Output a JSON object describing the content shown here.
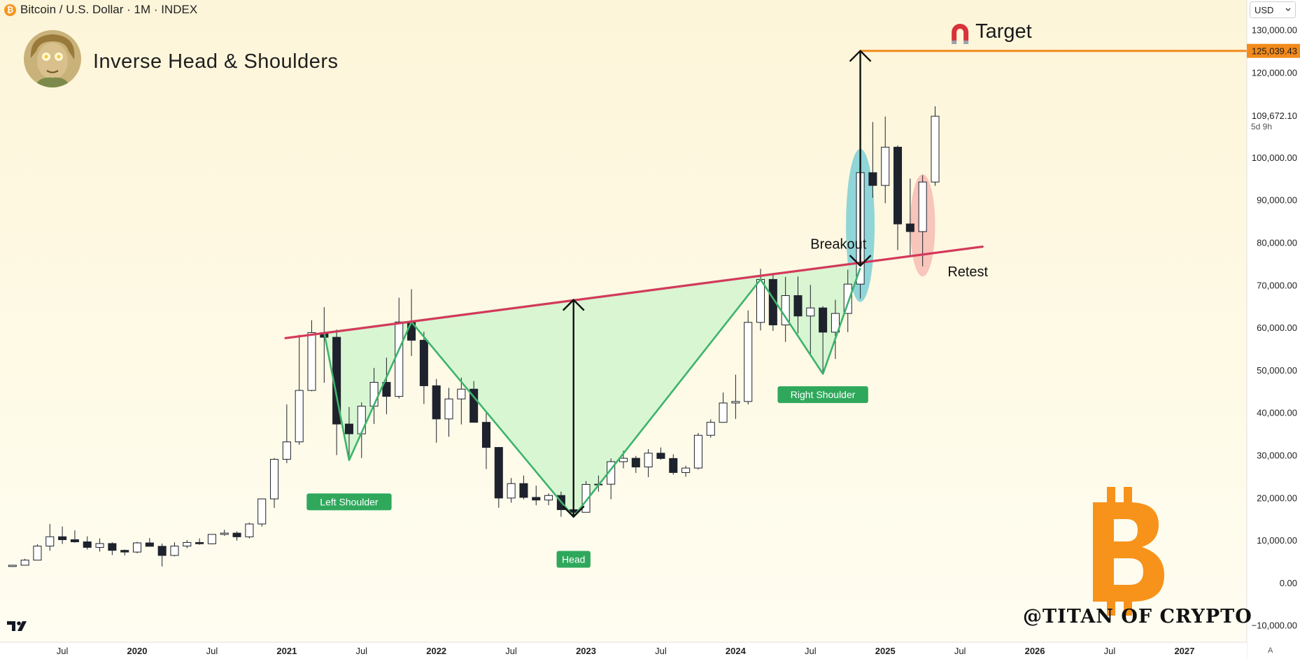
{
  "header": {
    "symbol_icon": "bitcoin-icon",
    "symbol_glyph": "₿",
    "text": "Bitcoin / U.S. Dollar · 1M · INDEX"
  },
  "author": {
    "avatar_icon": "author-avatar-icon",
    "title": "Inverse Head & Shoulders",
    "watermark": "@TITAN OF CRYPTO",
    "logo_icon": "bitcoin-logo-icon"
  },
  "currency_selector": {
    "value": "USD",
    "icon": "chevron-down-icon"
  },
  "branding": {
    "icon": "tradingview-logo-icon",
    "auto_label": "A"
  },
  "chart_data": {
    "type": "candlestick",
    "timeframe": "1M",
    "xlim": [
      "2019-02",
      "2027-06"
    ],
    "ylim": [
      -14000,
      137000
    ],
    "price_axis_ticks": [
      "130,000.00",
      "120,000.00",
      "100,000.00",
      "90,000.00",
      "80,000.00",
      "70,000.00",
      "60,000.00",
      "50,000.00",
      "40,000.00",
      "30,000.00",
      "20,000.00",
      "10,000.00",
      "0.00",
      "−10,000.00"
    ],
    "price_axis_values": [
      130000,
      120000,
      100000,
      90000,
      80000,
      70000,
      60000,
      50000,
      40000,
      30000,
      20000,
      10000,
      0,
      -10000
    ],
    "time_axis_labels": [
      {
        "date": "2019-07",
        "label": "Jul"
      },
      {
        "date": "2020-01",
        "label": "2020"
      },
      {
        "date": "2020-07",
        "label": "Jul"
      },
      {
        "date": "2021-01",
        "label": "2021"
      },
      {
        "date": "2021-07",
        "label": "Jul"
      },
      {
        "date": "2022-01",
        "label": "2022"
      },
      {
        "date": "2022-07",
        "label": "Jul"
      },
      {
        "date": "2023-01",
        "label": "2023"
      },
      {
        "date": "2023-07",
        "label": "Jul"
      },
      {
        "date": "2024-01",
        "label": "2024"
      },
      {
        "date": "2024-07",
        "label": "Jul"
      },
      {
        "date": "2025-01",
        "label": "2025"
      },
      {
        "date": "2025-07",
        "label": "Jul"
      },
      {
        "date": "2026-01",
        "label": "2026"
      },
      {
        "date": "2026-07",
        "label": "Jul"
      },
      {
        "date": "2027-01",
        "label": "2027"
      }
    ],
    "bold_time_labels": [
      "2020",
      "2021",
      "2022",
      "2023",
      "2024",
      "2025",
      "2026",
      "2027"
    ],
    "candles": [
      {
        "t": "2019-03",
        "o": 3800,
        "h": 4200,
        "l": 3700,
        "c": 4100
      },
      {
        "t": "2019-04",
        "o": 4100,
        "h": 5600,
        "l": 4100,
        "c": 5300
      },
      {
        "t": "2019-05",
        "o": 5300,
        "h": 9000,
        "l": 5300,
        "c": 8600
      },
      {
        "t": "2019-06",
        "o": 8600,
        "h": 13800,
        "l": 7500,
        "c": 10800
      },
      {
        "t": "2019-07",
        "o": 10800,
        "h": 13200,
        "l": 9100,
        "c": 10100
      },
      {
        "t": "2019-08",
        "o": 10100,
        "h": 12300,
        "l": 9400,
        "c": 9600
      },
      {
        "t": "2019-09",
        "o": 9600,
        "h": 10900,
        "l": 7800,
        "c": 8300
      },
      {
        "t": "2019-10",
        "o": 8300,
        "h": 10400,
        "l": 7300,
        "c": 9200
      },
      {
        "t": "2019-11",
        "o": 9200,
        "h": 9500,
        "l": 6500,
        "c": 7600
      },
      {
        "t": "2019-12",
        "o": 7600,
        "h": 7800,
        "l": 6400,
        "c": 7200
      },
      {
        "t": "2020-01",
        "o": 7200,
        "h": 9600,
        "l": 6900,
        "c": 9350
      },
      {
        "t": "2020-02",
        "o": 9350,
        "h": 10500,
        "l": 8500,
        "c": 8550
      },
      {
        "t": "2020-03",
        "o": 8550,
        "h": 9200,
        "l": 3800,
        "c": 6400
      },
      {
        "t": "2020-04",
        "o": 6400,
        "h": 9500,
        "l": 6200,
        "c": 8600
      },
      {
        "t": "2020-05",
        "o": 8600,
        "h": 10000,
        "l": 8100,
        "c": 9450
      },
      {
        "t": "2020-06",
        "o": 9450,
        "h": 10400,
        "l": 8900,
        "c": 9150
      },
      {
        "t": "2020-07",
        "o": 9150,
        "h": 11400,
        "l": 9000,
        "c": 11350
      },
      {
        "t": "2020-08",
        "o": 11350,
        "h": 12450,
        "l": 11000,
        "c": 11650
      },
      {
        "t": "2020-09",
        "o": 11650,
        "h": 12050,
        "l": 9900,
        "c": 10780
      },
      {
        "t": "2020-10",
        "o": 10780,
        "h": 14100,
        "l": 10400,
        "c": 13800
      },
      {
        "t": "2020-11",
        "o": 13800,
        "h": 19800,
        "l": 13200,
        "c": 19700
      },
      {
        "t": "2020-12",
        "o": 19700,
        "h": 29300,
        "l": 17600,
        "c": 29000
      },
      {
        "t": "2021-01",
        "o": 29000,
        "h": 41900,
        "l": 28100,
        "c": 33100
      },
      {
        "t": "2021-02",
        "o": 33100,
        "h": 58300,
        "l": 32400,
        "c": 45200
      },
      {
        "t": "2021-03",
        "o": 45200,
        "h": 61700,
        "l": 45000,
        "c": 58800
      },
      {
        "t": "2021-04",
        "o": 58800,
        "h": 64800,
        "l": 47000,
        "c": 57700
      },
      {
        "t": "2021-05",
        "o": 57700,
        "h": 59500,
        "l": 30000,
        "c": 37300
      },
      {
        "t": "2021-06",
        "o": 37300,
        "h": 41300,
        "l": 28800,
        "c": 35000
      },
      {
        "t": "2021-07",
        "o": 35000,
        "h": 42400,
        "l": 29300,
        "c": 41500
      },
      {
        "t": "2021-08",
        "o": 41500,
        "h": 50500,
        "l": 37300,
        "c": 47100
      },
      {
        "t": "2021-09",
        "o": 47100,
        "h": 52900,
        "l": 39600,
        "c": 43800
      },
      {
        "t": "2021-10",
        "o": 43800,
        "h": 67000,
        "l": 43300,
        "c": 61300
      },
      {
        "t": "2021-11",
        "o": 61300,
        "h": 69000,
        "l": 53300,
        "c": 57000
      },
      {
        "t": "2021-12",
        "o": 57000,
        "h": 59000,
        "l": 42000,
        "c": 46300
      },
      {
        "t": "2022-01",
        "o": 46300,
        "h": 47900,
        "l": 32900,
        "c": 38500
      },
      {
        "t": "2022-02",
        "o": 38500,
        "h": 45800,
        "l": 34300,
        "c": 43200
      },
      {
        "t": "2022-03",
        "o": 43200,
        "h": 48200,
        "l": 37200,
        "c": 45500
      },
      {
        "t": "2022-04",
        "o": 45500,
        "h": 47400,
        "l": 37700,
        "c": 37700
      },
      {
        "t": "2022-05",
        "o": 37700,
        "h": 40000,
        "l": 26700,
        "c": 31800
      },
      {
        "t": "2022-06",
        "o": 31800,
        "h": 31900,
        "l": 17600,
        "c": 19900
      },
      {
        "t": "2022-07",
        "o": 19900,
        "h": 24600,
        "l": 18800,
        "c": 23300
      },
      {
        "t": "2022-08",
        "o": 23300,
        "h": 25200,
        "l": 19600,
        "c": 20050
      },
      {
        "t": "2022-09",
        "o": 20050,
        "h": 22800,
        "l": 18200,
        "c": 19430
      },
      {
        "t": "2022-10",
        "o": 19430,
        "h": 21000,
        "l": 18200,
        "c": 20500
      },
      {
        "t": "2022-11",
        "o": 20500,
        "h": 21400,
        "l": 15500,
        "c": 17160
      },
      {
        "t": "2022-12",
        "o": 17160,
        "h": 18400,
        "l": 16300,
        "c": 16550
      },
      {
        "t": "2023-01",
        "o": 16550,
        "h": 23900,
        "l": 16500,
        "c": 23100
      },
      {
        "t": "2023-02",
        "o": 23100,
        "h": 25200,
        "l": 21400,
        "c": 23150
      },
      {
        "t": "2023-03",
        "o": 23150,
        "h": 29200,
        "l": 19600,
        "c": 28450
      },
      {
        "t": "2023-04",
        "o": 28450,
        "h": 31000,
        "l": 26900,
        "c": 29250
      },
      {
        "t": "2023-05",
        "o": 29250,
        "h": 29800,
        "l": 25800,
        "c": 27200
      },
      {
        "t": "2023-06",
        "o": 27200,
        "h": 31400,
        "l": 24800,
        "c": 30450
      },
      {
        "t": "2023-07",
        "o": 30450,
        "h": 31800,
        "l": 28900,
        "c": 29200
      },
      {
        "t": "2023-08",
        "o": 29200,
        "h": 30200,
        "l": 25400,
        "c": 25900
      },
      {
        "t": "2023-09",
        "o": 25900,
        "h": 27500,
        "l": 24900,
        "c": 26950
      },
      {
        "t": "2023-10",
        "o": 26950,
        "h": 35200,
        "l": 26600,
        "c": 34650
      },
      {
        "t": "2023-11",
        "o": 34650,
        "h": 38400,
        "l": 34100,
        "c": 37700
      },
      {
        "t": "2023-12",
        "o": 37700,
        "h": 44700,
        "l": 37600,
        "c": 42250
      },
      {
        "t": "2024-01",
        "o": 42250,
        "h": 48900,
        "l": 38500,
        "c": 42600
      },
      {
        "t": "2024-02",
        "o": 42600,
        "h": 64000,
        "l": 41900,
        "c": 61200
      },
      {
        "t": "2024-03",
        "o": 61200,
        "h": 73800,
        "l": 59300,
        "c": 71300
      },
      {
        "t": "2024-04",
        "o": 71300,
        "h": 72800,
        "l": 59200,
        "c": 60600
      },
      {
        "t": "2024-05",
        "o": 60600,
        "h": 71900,
        "l": 56600,
        "c": 67500
      },
      {
        "t": "2024-06",
        "o": 67500,
        "h": 72000,
        "l": 58600,
        "c": 62700
      },
      {
        "t": "2024-07",
        "o": 62700,
        "h": 70000,
        "l": 53600,
        "c": 64600
      },
      {
        "t": "2024-08",
        "o": 64600,
        "h": 65000,
        "l": 49100,
        "c": 58900
      },
      {
        "t": "2024-09",
        "o": 58900,
        "h": 66500,
        "l": 52600,
        "c": 63300
      },
      {
        "t": "2024-10",
        "o": 63300,
        "h": 73600,
        "l": 58900,
        "c": 70200
      },
      {
        "t": "2024-11",
        "o": 70200,
        "h": 99800,
        "l": 66800,
        "c": 96400
      },
      {
        "t": "2024-12",
        "o": 96400,
        "h": 108300,
        "l": 90500,
        "c": 93400
      },
      {
        "t": "2025-01",
        "o": 93400,
        "h": 109600,
        "l": 89200,
        "c": 102400
      },
      {
        "t": "2025-02",
        "o": 102400,
        "h": 102800,
        "l": 78200,
        "c": 84350
      },
      {
        "t": "2025-03",
        "o": 84350,
        "h": 95000,
        "l": 76600,
        "c": 82550
      },
      {
        "t": "2025-04",
        "o": 82550,
        "h": 95800,
        "l": 74400,
        "c": 94200
      },
      {
        "t": "2025-05",
        "o": 94200,
        "h": 112000,
        "l": 93300,
        "c": 109672
      }
    ],
    "neckline": {
      "from": {
        "t": "2020-12",
        "price": 57500
      },
      "to": {
        "t": "2025-08",
        "price": 79000
      }
    },
    "pattern_points": [
      {
        "t": "2021-04",
        "price": 58800
      },
      {
        "t": "2021-06",
        "price": 28800
      },
      {
        "t": "2021-11",
        "price": 61300
      },
      {
        "t": "2022-12",
        "price": 15500
      },
      {
        "t": "2024-03",
        "price": 71300
      },
      {
        "t": "2024-08",
        "price": 49100
      },
      {
        "t": "2024-11",
        "price": 74000
      }
    ],
    "pattern_labels": [
      {
        "text": "Left Shoulder",
        "t": "2021-06",
        "price": 19000
      },
      {
        "text": "Head",
        "t": "2022-12",
        "price": 5500
      },
      {
        "text": "Right Shoulder",
        "t": "2024-08",
        "price": 44200
      }
    ],
    "head_measure": {
      "t": "2022-12",
      "from": 15500,
      "to": 66500
    },
    "target_measure": {
      "t": "2024-11",
      "from": 74500,
      "to": 125039.43
    },
    "target": {
      "price": 125039.43,
      "label": "Target",
      "price_label": "125,039.43",
      "icon": "magnet-icon",
      "from": "2024-11"
    },
    "annotations": [
      {
        "text": "Breakout",
        "t": "2024-07",
        "price": 78500
      },
      {
        "text": "Retest",
        "t": "2025-06",
        "price": 72000
      }
    ],
    "breakout_highlight": {
      "t": "2024-11",
      "low": 66000,
      "high": 102000
    },
    "retest_highlight": {
      "t": "2025-04",
      "low": 72000,
      "high": 96000
    },
    "last_price": {
      "value": 109672.1,
      "label": "109,672.10",
      "countdown": "5d 9h"
    },
    "colors": {
      "bull": "#ffffff",
      "bear": "#1e222d",
      "candle_outline": "#1e222d",
      "neckline": "#d4395b",
      "pattern_line": "#3db36b",
      "pattern_fill": "#d2f5cf",
      "target": "#f28b1c",
      "label_bg": "#2fa85c",
      "breakout_fill": "#7ccfd6",
      "retest_fill": "#f5b4ad",
      "btc_orange": "#f7931a"
    }
  }
}
